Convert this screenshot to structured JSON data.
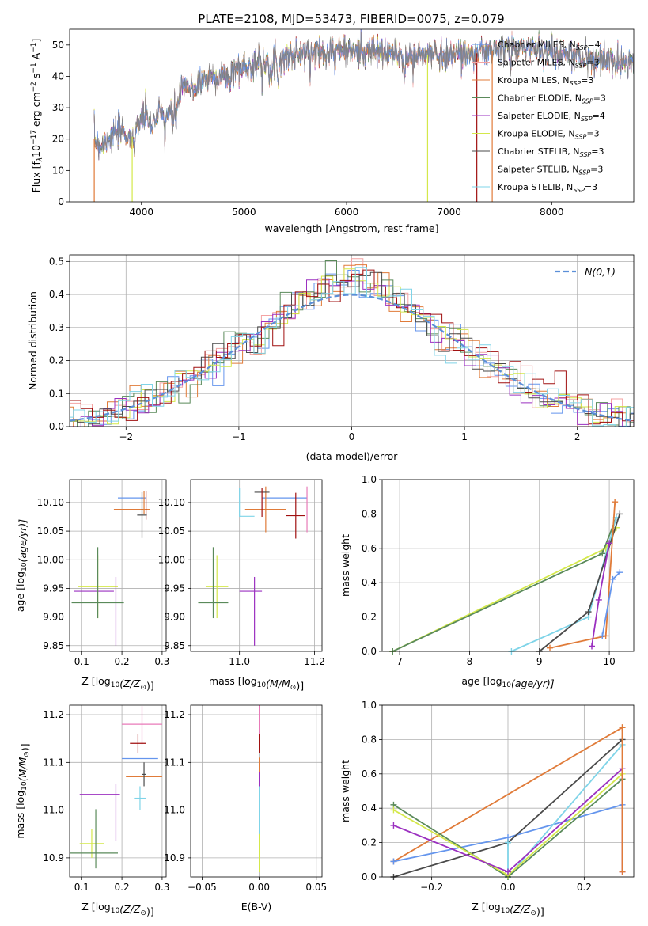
{
  "figure_title": "PLATE=2108, MJD=53473, FIBERID=0075, z=0.079",
  "colors": {
    "chabrier_miles": "#6495ed",
    "salpeter_miles": "#f4a3a3",
    "kroupa_miles": "#e07b39",
    "chabrier_elodie": "#5a8a5a",
    "salpeter_elodie": "#9b30c0",
    "kroupa_elodie": "#d4e84a",
    "chabrier_stelib": "#4a4a4a",
    "salpeter_stelib": "#a01010",
    "kroupa_stelib": "#7fd4e8",
    "normal": "#5b8fd8",
    "pink": "#e87ab8"
  },
  "chart_data": [
    {
      "type": "line",
      "id": "spectrum",
      "title": "PLATE=2108, MJD=53473, FIBERID=0075, z=0.079",
      "xlabel": "wavelength [Angstrom, rest frame]",
      "ylabel_parts": [
        "Flux [f",
        "λ",
        "10",
        "−17",
        " erg cm",
        "−2",
        " s",
        "−1",
        " A",
        "−1",
        "]"
      ],
      "xlim": [
        3300,
        8800
      ],
      "ylim": [
        0,
        55
      ],
      "xticks": [
        4000,
        5000,
        6000,
        7000,
        8000
      ],
      "yticks": [
        0,
        10,
        20,
        30,
        40,
        50
      ],
      "legend_position": "top-right",
      "continuum": {
        "x": [
          3540,
          3600,
          3700,
          3800,
          3900,
          4000,
          4100,
          4200,
          4300,
          4400,
          4500,
          4600,
          4700,
          4800,
          4900,
          5000,
          5100,
          5200,
          5300,
          5400,
          5500,
          5600,
          5700,
          5800,
          5900,
          6000,
          6200,
          6400,
          6600,
          6800,
          7000,
          7200,
          7400,
          7600,
          7800,
          8000,
          8200,
          8400
        ],
        "y": [
          20,
          18,
          21,
          23,
          20,
          28,
          26,
          28,
          28,
          36,
          36,
          39,
          40,
          40,
          42,
          43,
          44,
          45,
          45,
          46,
          47,
          47,
          48,
          48,
          49,
          48,
          48,
          47,
          46,
          47,
          47,
          47,
          48,
          49,
          49,
          48,
          47,
          45
        ]
      },
      "series": [
        {
          "name": "Chabrier MILES",
          "nssp": "4",
          "color_key": "chabrier_miles"
        },
        {
          "name": "Salpeter MILES",
          "nssp": "3",
          "color_key": "salpeter_miles"
        },
        {
          "name": "Kroupa MILES",
          "nssp": "3",
          "color_key": "kroupa_miles"
        },
        {
          "name": "Chabrier ELODIE",
          "nssp": "3",
          "color_key": "chabrier_elodie"
        },
        {
          "name": "Salpeter ELODIE",
          "nssp": "4",
          "color_key": "salpeter_elodie"
        },
        {
          "name": "Kroupa ELODIE",
          "nssp": "3",
          "color_key": "kroupa_elodie"
        },
        {
          "name": "Chabrier STELIB",
          "nssp": "3",
          "color_key": "chabrier_stelib"
        },
        {
          "name": "Salpeter STELIB",
          "nssp": "3",
          "color_key": "salpeter_stelib"
        },
        {
          "name": "Kroupa STELIB",
          "nssp": "3",
          "color_key": "kroupa_stelib"
        }
      ],
      "drop_edges": [
        {
          "x": 3540,
          "color_key": "kroupa_miles"
        },
        {
          "x": 3910,
          "color_key": "kroupa_elodie"
        },
        {
          "x": 6790,
          "color_key": "kroupa_elodie"
        },
        {
          "x": 7270,
          "color_key": "salpeter_stelib"
        },
        {
          "x": 7420,
          "color_key": "kroupa_miles"
        }
      ],
      "nssp_label": "N",
      "nssp_sub": "SSP"
    },
    {
      "type": "histogram",
      "id": "residuals",
      "xlabel": "(data-model)/error",
      "ylabel": "Normed distribution",
      "xlim": [
        -2.5,
        2.5
      ],
      "ylim": [
        0,
        0.52
      ],
      "xticks": [
        -2,
        -1,
        0,
        1,
        2
      ],
      "yticks": [
        0.0,
        0.1,
        0.2,
        0.3,
        0.4,
        0.5
      ],
      "legend_label": "N(0,1)",
      "legend_position": "top-right",
      "bin_width": 0.1,
      "grid": true
    },
    {
      "type": "scatter",
      "id": "age_vs_Z",
      "xlabel": "Z [log10(Z/Z⊙)]",
      "ylabel": "age  [log10(age/yr)]",
      "xlim": [
        0.07,
        0.31
      ],
      "ylim": [
        9.84,
        10.14
      ],
      "xticks": [
        0.1,
        0.2,
        0.3
      ],
      "yticks": [
        9.85,
        9.9,
        9.95,
        10.0,
        10.05,
        10.1
      ],
      "points": [
        {
          "x": 0.225,
          "y": 10.108,
          "ex": 0.035,
          "ey": 0.0,
          "c": "chabrier_miles"
        },
        {
          "x": 0.225,
          "y": 10.088,
          "ex": 0.045,
          "ey": 0.0,
          "c": "kroupa_miles"
        },
        {
          "x": 0.26,
          "y": 10.095,
          "ex": 0.0,
          "ey": 0.025,
          "c": "salpeter_stelib"
        },
        {
          "x": 0.25,
          "y": 10.078,
          "ex": 0.012,
          "ey": 0.04,
          "c": "chabrier_stelib"
        },
        {
          "x": 0.255,
          "y": 10.1,
          "ex": 0.0,
          "ey": 0.02,
          "c": "kroupa_miles"
        },
        {
          "x": 0.14,
          "y": 9.953,
          "ex": 0.05,
          "ey": 0.055,
          "c": "kroupa_elodie"
        },
        {
          "x": 0.13,
          "y": 9.945,
          "ex": 0.05,
          "ey": 0.0,
          "c": "salpeter_elodie"
        },
        {
          "x": 0.185,
          "y": 9.91,
          "ex": 0.0,
          "ey": 0.06,
          "c": "salpeter_elodie"
        },
        {
          "x": 0.14,
          "y": 9.925,
          "ex": 0.065,
          "ey": 0.0,
          "c": "chabrier_elodie"
        },
        {
          "x": 0.14,
          "y": 9.96,
          "ex": 0.0,
          "ey": 0.062,
          "c": "chabrier_elodie"
        }
      ]
    },
    {
      "type": "scatter",
      "id": "age_vs_mass",
      "xlabel": "mass [log10(M/M⊙)]",
      "ylabel": "",
      "xlim": [
        10.87,
        11.22
      ],
      "ylim": [
        9.84,
        10.14
      ],
      "xticks": [
        11.0,
        11.2
      ],
      "yticks": [
        9.85,
        9.9,
        9.95,
        10.0,
        10.05,
        10.1
      ],
      "points": [
        {
          "x": 11.12,
          "y": 10.108,
          "ex": 0.06,
          "ey": 0.0,
          "c": "chabrier_miles"
        },
        {
          "x": 11.18,
          "y": 10.088,
          "ex": 0.0,
          "ey": 0.04,
          "c": "pink"
        },
        {
          "x": 11.07,
          "y": 10.088,
          "ex": 0.055,
          "ey": 0.04,
          "c": "kroupa_miles"
        },
        {
          "x": 11.15,
          "y": 10.077,
          "ex": 0.025,
          "ey": 0.04,
          "c": "salpeter_stelib"
        },
        {
          "x": 11.06,
          "y": 10.118,
          "ex": 0.02,
          "ey": 0.0,
          "c": "chabrier_stelib"
        },
        {
          "x": 11.06,
          "y": 10.1,
          "ex": 0.0,
          "ey": 0.025,
          "c": "salpeter_stelib"
        },
        {
          "x": 11.0,
          "y": 10.1,
          "ex": 0.0,
          "ey": 0.025,
          "c": "kroupa_stelib"
        },
        {
          "x": 11.02,
          "y": 10.076,
          "ex": 0.02,
          "ey": 0.0,
          "c": "kroupa_stelib"
        },
        {
          "x": 10.94,
          "y": 9.953,
          "ex": 0.03,
          "ey": 0.055,
          "c": "kroupa_elodie"
        },
        {
          "x": 11.03,
          "y": 9.945,
          "ex": 0.03,
          "ey": 0.0,
          "c": "salpeter_elodie"
        },
        {
          "x": 11.04,
          "y": 9.91,
          "ex": 0.0,
          "ey": 0.06,
          "c": "salpeter_elodie"
        },
        {
          "x": 10.93,
          "y": 9.925,
          "ex": 0.04,
          "ey": 0.0,
          "c": "chabrier_elodie"
        },
        {
          "x": 10.93,
          "y": 9.96,
          "ex": 0.0,
          "ey": 0.062,
          "c": "chabrier_elodie"
        }
      ]
    },
    {
      "type": "line",
      "id": "weight_vs_age",
      "xlabel": "age  [log10(age/yr)]",
      "ylabel": "mass weight",
      "xlim": [
        6.75,
        10.35
      ],
      "ylim": [
        0,
        1.0
      ],
      "xticks": [
        7,
        8,
        9,
        10
      ],
      "yticks": [
        0.0,
        0.2,
        0.4,
        0.6,
        0.8,
        1.0
      ],
      "series": [
        {
          "c": "kroupa_elodie",
          "x": [
            6.9,
            9.95,
            10.1
          ],
          "y": [
            0.0,
            0.6,
            0.72
          ]
        },
        {
          "c": "chabrier_elodie",
          "x": [
            6.9,
            9.9,
            10.1
          ],
          "y": [
            0.0,
            0.57,
            0.78
          ]
        },
        {
          "c": "kroupa_stelib",
          "x": [
            8.6,
            9.7,
            10.1
          ],
          "y": [
            0.0,
            0.2,
            0.78
          ]
        },
        {
          "c": "chabrier_stelib",
          "x": [
            9.0,
            9.7,
            10.15
          ],
          "y": [
            0.0,
            0.23,
            0.8
          ]
        },
        {
          "c": "kroupa_miles",
          "x": [
            9.15,
            9.95,
            10.08
          ],
          "y": [
            0.02,
            0.09,
            0.87
          ]
        },
        {
          "c": "chabrier_miles",
          "x": [
            9.9,
            10.05,
            10.15
          ],
          "y": [
            0.09,
            0.42,
            0.46
          ]
        },
        {
          "c": "salpeter_elodie",
          "x": [
            9.75,
            9.85,
            10.0
          ],
          "y": [
            0.03,
            0.3,
            0.63
          ]
        }
      ]
    },
    {
      "type": "scatter",
      "id": "mass_vs_Z",
      "xlabel": "Z [log10(Z/Z⊙)]",
      "ylabel": "mass [log10(M/M⊙)]",
      "xlim": [
        0.07,
        0.31
      ],
      "ylim": [
        10.86,
        11.22
      ],
      "xticks": [
        0.1,
        0.2,
        0.3
      ],
      "yticks": [
        10.9,
        11.0,
        11.1,
        11.2
      ],
      "points": [
        {
          "x": 0.25,
          "y": 11.18,
          "ex": 0.05,
          "ey": 0.0,
          "c": "pink"
        },
        {
          "x": 0.25,
          "y": 11.178,
          "ex": 0.0,
          "ey": 0.04,
          "c": "pink"
        },
        {
          "x": 0.24,
          "y": 11.14,
          "ex": 0.02,
          "ey": 0.02,
          "c": "salpeter_stelib"
        },
        {
          "x": 0.245,
          "y": 11.108,
          "ex": 0.045,
          "ey": 0.0,
          "c": "chabrier_miles"
        },
        {
          "x": 0.255,
          "y": 11.07,
          "ex": 0.045,
          "ey": 0.0,
          "c": "kroupa_miles"
        },
        {
          "x": 0.255,
          "y": 11.075,
          "ex": 0.005,
          "ey": 0.025,
          "c": "chabrier_stelib"
        },
        {
          "x": 0.245,
          "y": 11.025,
          "ex": 0.015,
          "ey": 0.025,
          "c": "kroupa_stelib"
        },
        {
          "x": 0.145,
          "y": 11.033,
          "ex": 0.05,
          "ey": 0.0,
          "c": "salpeter_elodie"
        },
        {
          "x": 0.185,
          "y": 10.995,
          "ex": 0.0,
          "ey": 0.06,
          "c": "salpeter_elodie"
        },
        {
          "x": 0.125,
          "y": 10.93,
          "ex": 0.03,
          "ey": 0.03,
          "c": "kroupa_elodie"
        },
        {
          "x": 0.125,
          "y": 10.91,
          "ex": 0.065,
          "ey": 0.0,
          "c": "chabrier_elodie"
        },
        {
          "x": 0.135,
          "y": 10.94,
          "ex": 0.0,
          "ey": 0.062,
          "c": "chabrier_elodie"
        }
      ]
    },
    {
      "type": "scatter",
      "id": "mass_vs_ebv",
      "xlabel": "E(B-V)",
      "ylabel": "",
      "xlim": [
        -0.06,
        0.055
      ],
      "ylim": [
        10.86,
        11.22
      ],
      "xticks": [
        -0.05,
        0.0,
        0.05
      ],
      "xtick_labels": [
        "−0.05",
        "0.00",
        "0.05"
      ],
      "yticks": [
        10.9,
        11.0,
        11.1,
        11.2
      ],
      "points": [
        {
          "x": 0.0,
          "y": 11.18,
          "ex": 0.0,
          "ey": 0.04,
          "c": "pink"
        },
        {
          "x": 0.0,
          "y": 11.14,
          "ex": 0.0,
          "ey": 0.02,
          "c": "salpeter_stelib"
        },
        {
          "x": 0.0,
          "y": 11.07,
          "ex": 0.0,
          "ey": 0.04,
          "c": "kroupa_miles"
        },
        {
          "x": 0.0,
          "y": 11.03,
          "ex": 0.0,
          "ey": 0.05,
          "c": "salpeter_elodie"
        },
        {
          "x": 0.0,
          "y": 10.93,
          "ex": 0.0,
          "ey": 0.06,
          "c": "kroupa_elodie"
        },
        {
          "x": 0.0,
          "y": 11.0,
          "ex": 0.0,
          "ey": 0.05,
          "c": "kroupa_stelib"
        }
      ]
    },
    {
      "type": "line",
      "id": "weight_vs_Z",
      "xlabel": "Z [log10(Z/Z⊙)]",
      "ylabel": "mass weight",
      "xlim": [
        -0.33,
        0.33
      ],
      "ylim": [
        0,
        1.0
      ],
      "xticks": [
        -0.2,
        0.0,
        0.2
      ],
      "xtick_labels": [
        "−0.2",
        "0.0",
        "0.2"
      ],
      "yticks": [
        0.0,
        0.2,
        0.4,
        0.6,
        0.8,
        1.0
      ],
      "series": [
        {
          "c": "kroupa_miles",
          "x": [
            -0.3,
            0.3
          ],
          "y": [
            0.09,
            0.87
          ]
        },
        {
          "c": "chabrier_miles",
          "x": [
            -0.3,
            0.0,
            0.3
          ],
          "y": [
            0.09,
            0.23,
            0.42
          ]
        },
        {
          "c": "chabrier_stelib",
          "x": [
            -0.3,
            0.0,
            0.3
          ],
          "y": [
            0.0,
            0.2,
            0.8
          ]
        },
        {
          "c": "kroupa_stelib",
          "x": [
            0.0,
            0.0,
            0.3
          ],
          "y": [
            0.2,
            0.0,
            0.77
          ]
        },
        {
          "c": "chabrier_elodie",
          "x": [
            -0.3,
            0.0,
            0.3
          ],
          "y": [
            0.42,
            0.0,
            0.57
          ]
        },
        {
          "c": "kroupa_elodie",
          "x": [
            -0.3,
            0.0,
            0.3
          ],
          "y": [
            0.39,
            0.01,
            0.6
          ]
        },
        {
          "c": "salpeter_elodie",
          "x": [
            -0.3,
            0.0,
            0.3,
            0.3
          ],
          "y": [
            0.3,
            0.03,
            0.63,
            0.03
          ]
        },
        {
          "c": "kroupa_miles",
          "x": [
            0.3,
            0.3
          ],
          "y": [
            0.03,
            0.87
          ]
        }
      ]
    }
  ]
}
